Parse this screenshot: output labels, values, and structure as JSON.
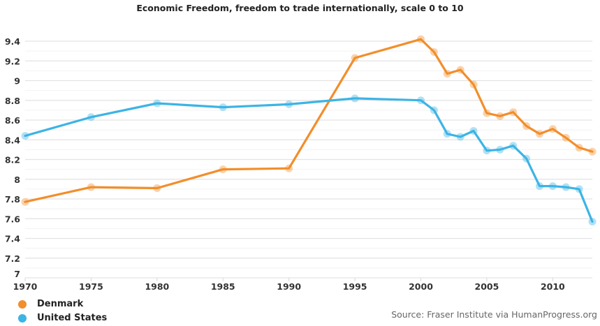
{
  "chart_data": {
    "type": "line",
    "title": "Economic Freedom, freedom to trade internationally, scale 0 to 10",
    "xlabel": "",
    "ylabel": "",
    "xlim": [
      1970,
      2013
    ],
    "ylim": [
      7,
      9.4
    ],
    "x_ticks": [
      "1970",
      "1975",
      "1980",
      "1985",
      "1990",
      "1995",
      "2000",
      "2005",
      "2010"
    ],
    "y_ticks": [
      "7",
      "7.2",
      "7.4",
      "7.6",
      "7.8",
      "8",
      "8.2",
      "8.4",
      "8.6",
      "8.8",
      "9",
      "9.2",
      "9.4"
    ],
    "grid": true,
    "legend_position": "bottom-left",
    "series": [
      {
        "name": "Denmark",
        "color": "#f28e2b",
        "x": [
          1970,
          1975,
          1980,
          1985,
          1990,
          1995,
          2000,
          2001,
          2002,
          2003,
          2004,
          2005,
          2006,
          2007,
          2008,
          2009,
          2010,
          2011,
          2012,
          2013
        ],
        "values": [
          7.77,
          7.92,
          7.91,
          8.1,
          8.11,
          9.23,
          9.42,
          9.29,
          9.07,
          9.11,
          8.96,
          8.67,
          8.64,
          8.68,
          8.54,
          8.46,
          8.51,
          8.42,
          8.32,
          8.28
        ]
      },
      {
        "name": "United States",
        "color": "#3cb4e5",
        "x": [
          1970,
          1975,
          1980,
          1985,
          1990,
          1995,
          2000,
          2001,
          2002,
          2003,
          2004,
          2005,
          2006,
          2007,
          2008,
          2009,
          2010,
          2011,
          2012,
          2013
        ],
        "values": [
          8.44,
          8.63,
          8.77,
          8.73,
          8.76,
          8.82,
          8.8,
          8.7,
          8.46,
          8.43,
          8.49,
          8.29,
          8.3,
          8.34,
          8.21,
          7.93,
          7.93,
          7.92,
          7.9,
          7.57
        ]
      }
    ]
  },
  "source": "Source: Fraser Institute via HumanProgress.org"
}
